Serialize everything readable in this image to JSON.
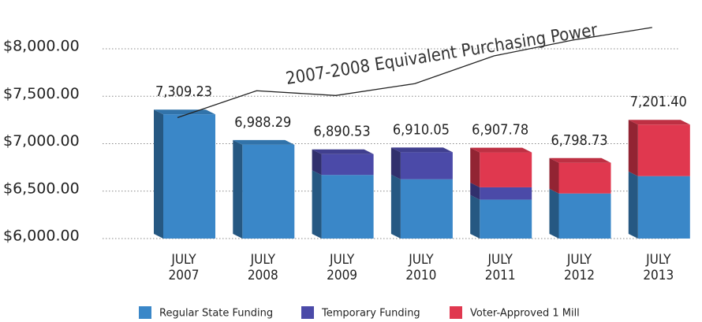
{
  "chart_data": {
    "type": "bar",
    "categories": [
      "JULY 2007",
      "JULY 2008",
      "JULY 2009",
      "JULY 2010",
      "JULY 2011",
      "JULY 2012",
      "JULY 2013"
    ],
    "series": [
      {
        "name": "Regular State Funding",
        "color": "#3a87c8",
        "values": [
          7309.23,
          6988.29,
          6670,
          6625,
          6410,
          6475,
          6658
        ]
      },
      {
        "name": "Temporary Funding",
        "color": "#4b4aa8",
        "values": [
          0,
          0,
          220,
          285,
          130,
          0,
          0
        ]
      },
      {
        "name": "Voter-Approved 1 Mill",
        "color": "#e0384f",
        "values": [
          0,
          0,
          0,
          0,
          368,
          324,
          543
        ]
      }
    ],
    "totals": [
      7309.23,
      6988.29,
      6890.53,
      6910.05,
      6907.78,
      6798.73,
      7201.4
    ],
    "total_labels": [
      "7,309.23",
      "6,988.29",
      "6,890.53",
      "6,910.05",
      "6,907.78",
      "6,798.73",
      "7,201.40"
    ],
    "line": {
      "name": "2007-2008 Equivalent Purchasing Power",
      "color": "#222222",
      "values": [
        7275,
        7558,
        7508,
        7633,
        7925,
        8092,
        8225
      ]
    },
    "ylim": [
      6000,
      8300
    ],
    "yticks": [
      {
        "value": 6000,
        "label": "$6,000.00"
      },
      {
        "value": 6500,
        "label": "$6,500.00"
      },
      {
        "value": 7000,
        "label": "$7,000.00"
      },
      {
        "value": 7500,
        "label": "$7,500.00"
      },
      {
        "value": 8000,
        "label": "$8,000.00"
      }
    ],
    "grid": true
  }
}
